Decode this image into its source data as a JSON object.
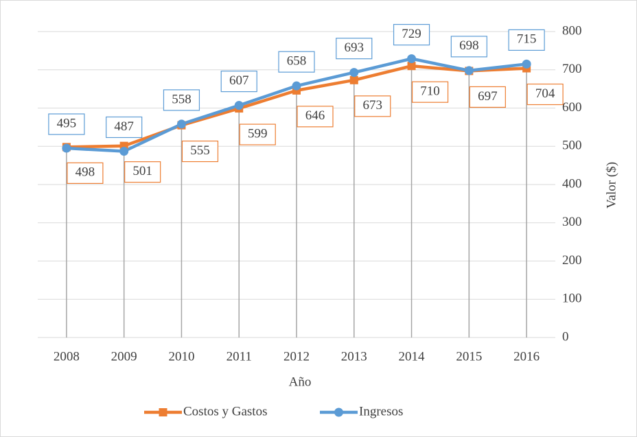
{
  "chart_data": {
    "type": "line",
    "x_label": "Año",
    "y_label": "Valor ($)",
    "categories": [
      "2008",
      "2009",
      "2010",
      "2011",
      "2012",
      "2013",
      "2014",
      "2015",
      "2016"
    ],
    "series": [
      {
        "name": "Costos y Gastos",
        "color": "#ed7d31",
        "marker": "square",
        "values": [
          498,
          501,
          555,
          599,
          646,
          673,
          710,
          697,
          704
        ]
      },
      {
        "name": "Ingresos",
        "color": "#5b9bd5",
        "marker": "circle",
        "values": [
          495,
          487,
          558,
          607,
          658,
          693,
          729,
          698,
          715
        ]
      }
    ],
    "ylim": [
      0,
      800
    ],
    "yticks": [
      0,
      100,
      200,
      300,
      400,
      500,
      600,
      700,
      800
    ],
    "y_axis_side": "right",
    "grid": true,
    "drop_lines": true,
    "data_labels": true,
    "legend": "bottom"
  }
}
